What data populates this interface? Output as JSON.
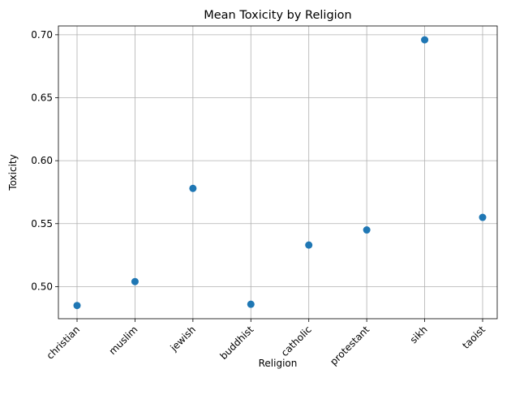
{
  "chart_data": {
    "type": "scatter",
    "title": "Mean Toxicity by Religion",
    "xlabel": "Religion",
    "ylabel": "Toxicity",
    "categories": [
      "christian",
      "muslim",
      "jewish",
      "buddhist",
      "catholic",
      "protestant",
      "sikh",
      "taoist"
    ],
    "values": [
      0.485,
      0.504,
      0.578,
      0.486,
      0.533,
      0.545,
      0.696,
      0.555
    ],
    "yticks": [
      "0.50",
      "0.55",
      "0.60",
      "0.65",
      "0.70"
    ],
    "ylim": [
      0.4745,
      0.707
    ],
    "grid": true,
    "colors": {
      "marker": "#1f77b4",
      "grid": "#b0b0b0",
      "axis": "#000000"
    }
  }
}
